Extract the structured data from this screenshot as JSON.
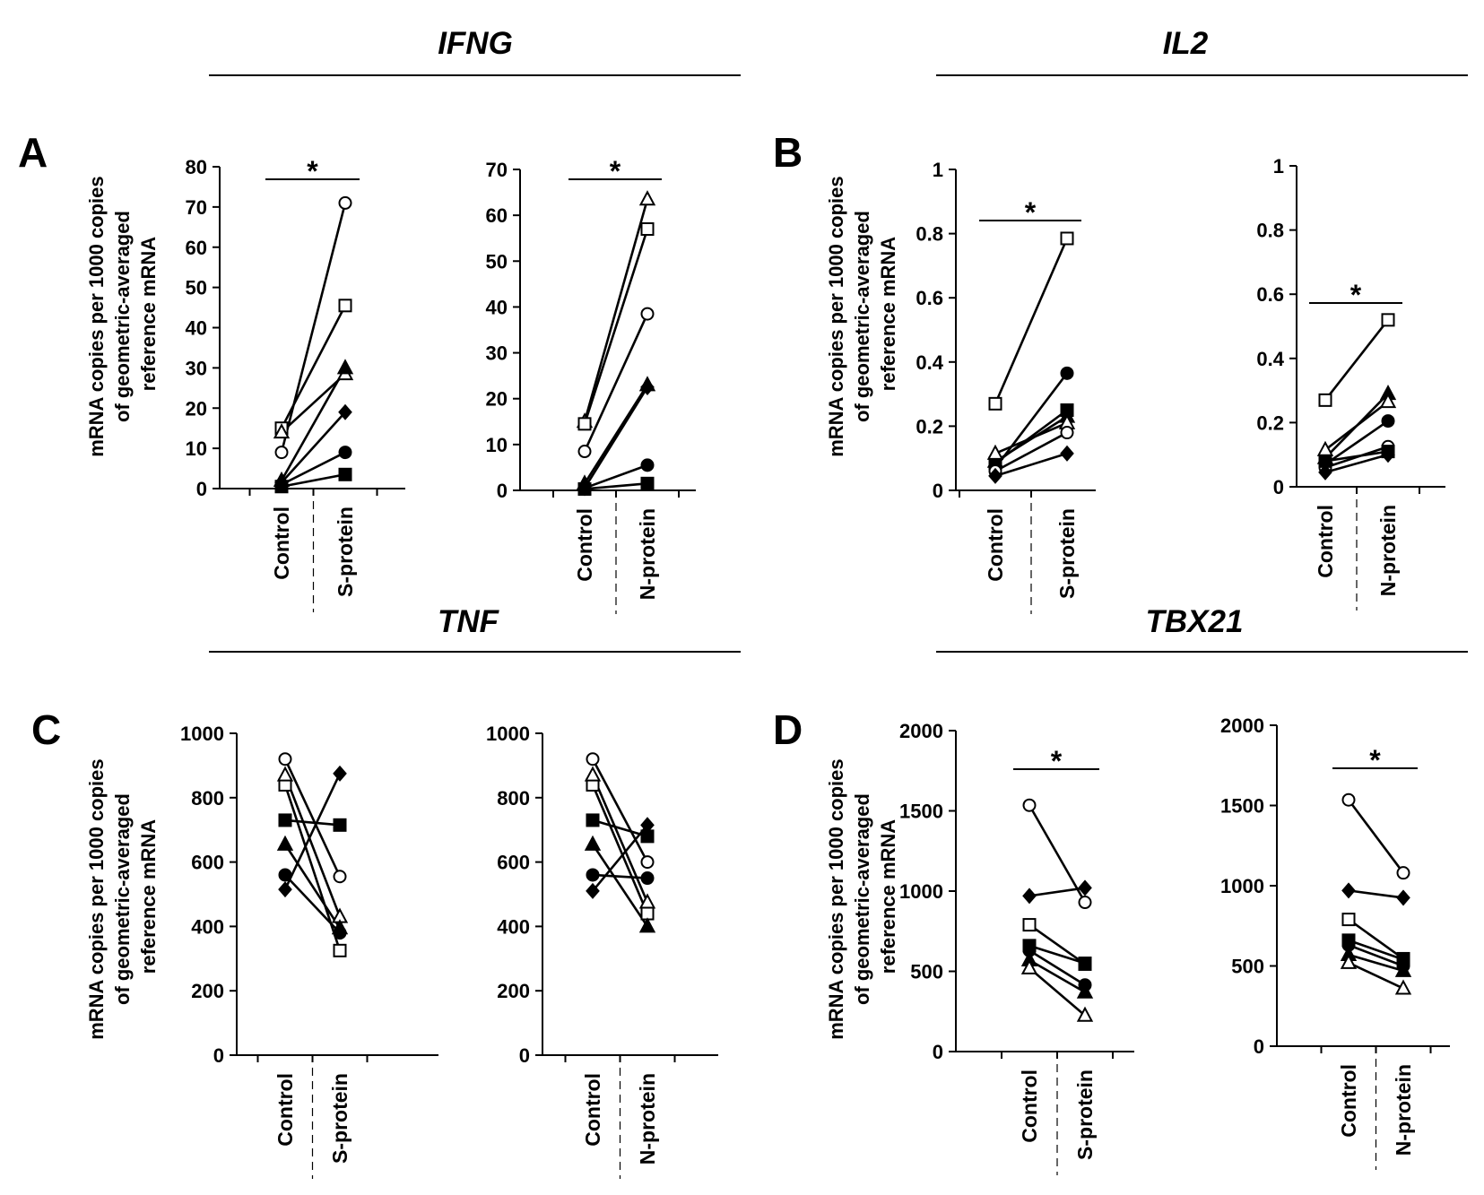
{
  "figure": {
    "headers": [
      "IFNG",
      "IL2",
      "TNF",
      "TBX21"
    ],
    "panel_letters": [
      "A",
      "B",
      "C",
      "D"
    ],
    "ylabel_lines": [
      "mRNA copies per 1000 copies",
      "of geometric-averaged",
      "reference mRNA"
    ]
  },
  "chart_data": [
    {
      "type": "line",
      "panel": "A",
      "gene": "IFNG",
      "title": "",
      "xlabel": "",
      "ylabel": "mRNA copies per 1000 copies of geometric-averaged reference mRNA",
      "categories": [
        "Control",
        "S-protein"
      ],
      "yticks": [
        0,
        10,
        20,
        30,
        40,
        50,
        60,
        70,
        80
      ],
      "ylim": [
        0,
        80
      ],
      "significance": "*",
      "series": [
        {
          "marker": "circle-open",
          "values": [
            9,
            71
          ]
        },
        {
          "marker": "square-open",
          "values": [
            15,
            45.5
          ]
        },
        {
          "marker": "triangle-open",
          "values": [
            14,
            28.5
          ]
        },
        {
          "marker": "triangle-filled",
          "values": [
            2,
            30
          ]
        },
        {
          "marker": "diamond-filled",
          "values": [
            1.5,
            19
          ]
        },
        {
          "marker": "circle-filled",
          "values": [
            1,
            9
          ]
        },
        {
          "marker": "square-filled",
          "values": [
            0.5,
            3.5
          ]
        }
      ]
    },
    {
      "type": "line",
      "panel": "A",
      "gene": "IFNG",
      "title": "",
      "xlabel": "",
      "ylabel": "",
      "categories": [
        "Control",
        "N-protein"
      ],
      "yticks": [
        0,
        10,
        20,
        30,
        40,
        50,
        60,
        70
      ],
      "ylim": [
        0,
        70
      ],
      "significance": "*",
      "series": [
        {
          "marker": "triangle-open",
          "values": [
            15,
            63.5
          ]
        },
        {
          "marker": "square-open",
          "values": [
            14.5,
            57
          ]
        },
        {
          "marker": "circle-open",
          "values": [
            8.5,
            38.5
          ]
        },
        {
          "marker": "triangle-filled",
          "values": [
            1.5,
            23
          ]
        },
        {
          "marker": "diamond-filled",
          "values": [
            0.5,
            22.5
          ]
        },
        {
          "marker": "circle-filled",
          "values": [
            0.5,
            5.5
          ]
        },
        {
          "marker": "square-filled",
          "values": [
            0.3,
            1.5
          ]
        }
      ]
    },
    {
      "type": "line",
      "panel": "B",
      "gene": "IL2",
      "title": "",
      "xlabel": "",
      "ylabel": "mRNA copies per 1000 copies of geometric-averaged reference mRNA",
      "categories": [
        "Control",
        "S-protein"
      ],
      "yticks": [
        0,
        0.2,
        0.4,
        0.6,
        0.8,
        1
      ],
      "ylim": [
        0,
        1
      ],
      "significance": "*",
      "series": [
        {
          "marker": "square-open",
          "values": [
            0.27,
            0.785
          ]
        },
        {
          "marker": "circle-filled",
          "values": [
            0.07,
            0.365
          ]
        },
        {
          "marker": "square-filled",
          "values": [
            0.085,
            0.25
          ]
        },
        {
          "marker": "triangle-filled",
          "values": [
            0.09,
            0.23
          ]
        },
        {
          "marker": "triangle-open",
          "values": [
            0.115,
            0.21
          ]
        },
        {
          "marker": "circle-open",
          "values": [
            0.06,
            0.18
          ]
        },
        {
          "marker": "diamond-filled",
          "values": [
            0.045,
            0.115
          ]
        }
      ]
    },
    {
      "type": "line",
      "panel": "B",
      "gene": "IL2",
      "title": "",
      "xlabel": "",
      "ylabel": "",
      "categories": [
        "Control",
        "N-protein"
      ],
      "yticks": [
        0,
        0.2,
        0.4,
        0.6,
        0.8,
        1
      ],
      "ylim": [
        0,
        1
      ],
      "significance": "*",
      "series": [
        {
          "marker": "square-open",
          "values": [
            0.27,
            0.52
          ]
        },
        {
          "marker": "triangle-filled",
          "values": [
            0.09,
            0.29
          ]
        },
        {
          "marker": "triangle-open",
          "values": [
            0.115,
            0.265
          ]
        },
        {
          "marker": "circle-filled",
          "values": [
            0.07,
            0.205
          ]
        },
        {
          "marker": "circle-open",
          "values": [
            0.06,
            0.125
          ]
        },
        {
          "marker": "square-filled",
          "values": [
            0.08,
            0.11
          ]
        },
        {
          "marker": "diamond-filled",
          "values": [
            0.045,
            0.1
          ]
        }
      ]
    },
    {
      "type": "line",
      "panel": "C",
      "gene": "TNF",
      "title": "",
      "xlabel": "",
      "ylabel": "mRNA copies per 1000 copies of geometric-averaged reference mRNA",
      "categories": [
        "Control",
        "S-protein"
      ],
      "yticks": [
        0,
        200,
        400,
        600,
        800,
        1000
      ],
      "ylim": [
        0,
        1000
      ],
      "significance": "",
      "series": [
        {
          "marker": "circle-open",
          "values": [
            920,
            555
          ]
        },
        {
          "marker": "square-open",
          "values": [
            840,
            325
          ]
        },
        {
          "marker": "triangle-open",
          "values": [
            870,
            430
          ]
        },
        {
          "marker": "square-filled",
          "values": [
            730,
            715
          ]
        },
        {
          "marker": "triangle-filled",
          "values": [
            655,
            395
          ]
        },
        {
          "marker": "circle-filled",
          "values": [
            560,
            380
          ]
        },
        {
          "marker": "diamond-filled",
          "values": [
            515,
            875
          ]
        }
      ]
    },
    {
      "type": "line",
      "panel": "C",
      "gene": "TNF",
      "title": "",
      "xlabel": "",
      "ylabel": "",
      "categories": [
        "Control",
        "N-protein"
      ],
      "yticks": [
        0,
        200,
        400,
        600,
        800,
        1000
      ],
      "ylim": [
        0,
        1000
      ],
      "significance": "",
      "series": [
        {
          "marker": "circle-open",
          "values": [
            920,
            600
          ]
        },
        {
          "marker": "square-open",
          "values": [
            840,
            440
          ]
        },
        {
          "marker": "triangle-open",
          "values": [
            870,
            475
          ]
        },
        {
          "marker": "square-filled",
          "values": [
            730,
            680
          ]
        },
        {
          "marker": "triangle-filled",
          "values": [
            655,
            400
          ]
        },
        {
          "marker": "circle-filled",
          "values": [
            560,
            550
          ]
        },
        {
          "marker": "diamond-filled",
          "values": [
            510,
            715
          ]
        }
      ]
    },
    {
      "type": "line",
      "panel": "D",
      "gene": "TBX21",
      "title": "",
      "xlabel": "",
      "ylabel": "mRNA copies per 1000 copies of geometric-averaged reference mRNA",
      "categories": [
        "Control",
        "S-protein"
      ],
      "yticks": [
        0,
        500,
        1000,
        1500,
        2000
      ],
      "ylim": [
        0,
        2000
      ],
      "significance": "*",
      "series": [
        {
          "marker": "circle-open",
          "values": [
            1535,
            930
          ]
        },
        {
          "marker": "diamond-filled",
          "values": [
            970,
            1020
          ]
        },
        {
          "marker": "square-open",
          "values": [
            790,
            545
          ]
        },
        {
          "marker": "square-filled",
          "values": [
            660,
            550
          ]
        },
        {
          "marker": "circle-filled",
          "values": [
            630,
            415
          ]
        },
        {
          "marker": "triangle-filled",
          "values": [
            570,
            370
          ]
        },
        {
          "marker": "triangle-open",
          "values": [
            520,
            225
          ]
        }
      ]
    },
    {
      "type": "line",
      "panel": "D",
      "gene": "TBX21",
      "title": "",
      "xlabel": "",
      "ylabel": "",
      "categories": [
        "Control",
        "N-protein"
      ],
      "yticks": [
        0,
        500,
        1000,
        1500,
        2000
      ],
      "ylim": [
        0,
        2000
      ],
      "significance": "*",
      "series": [
        {
          "marker": "circle-open",
          "values": [
            1535,
            1080
          ]
        },
        {
          "marker": "diamond-filled",
          "values": [
            970,
            925
          ]
        },
        {
          "marker": "square-open",
          "values": [
            790,
            545
          ]
        },
        {
          "marker": "square-filled",
          "values": [
            660,
            540
          ]
        },
        {
          "marker": "circle-filled",
          "values": [
            630,
            500
          ]
        },
        {
          "marker": "triangle-filled",
          "values": [
            570,
            470
          ]
        },
        {
          "marker": "triangle-open",
          "values": [
            520,
            360
          ]
        }
      ]
    }
  ]
}
